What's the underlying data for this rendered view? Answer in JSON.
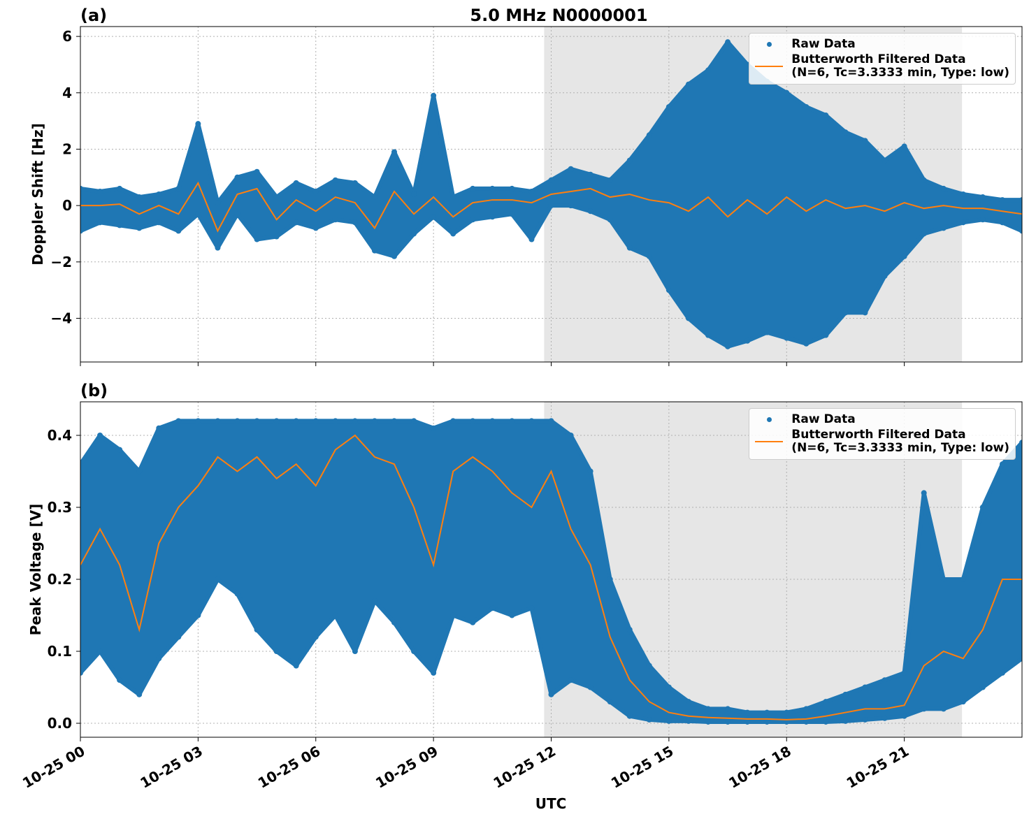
{
  "chart_data": [
    {
      "type": "line",
      "panel_label": "(a)",
      "title": "5.0 MHz N0000001",
      "ylabel": "Doppler Shift [Hz]",
      "x": [
        0,
        0.5,
        1,
        1.5,
        2,
        2.5,
        3,
        3.5,
        4,
        4.5,
        5,
        5.5,
        6,
        6.5,
        7,
        7.5,
        8,
        8.5,
        9,
        9.5,
        10,
        10.5,
        11,
        11.5,
        12,
        12.5,
        13,
        13.5,
        14,
        14.5,
        15,
        15.5,
        16,
        16.5,
        17,
        17.5,
        18,
        18.5,
        19,
        19.5,
        20,
        20.5,
        21,
        21.5,
        22,
        22.5,
        23,
        23.5,
        24
      ],
      "xlim": [
        0,
        24
      ],
      "xticks": [
        0,
        3,
        6,
        9,
        12,
        15,
        18,
        21
      ],
      "ylim": [
        -5.55,
        6.35
      ],
      "yticks": [
        {
          "value": -4,
          "label": "−4"
        },
        {
          "value": -2,
          "label": "−2"
        },
        0,
        2,
        4,
        6
      ],
      "grid": true,
      "shaded_span": [
        11.82,
        22.47
      ],
      "legend": "upper right",
      "series": [
        {
          "name": "Raw Data",
          "kind": "scatter",
          "color": "#1f77b4",
          "max": [
            0.6,
            0.5,
            0.6,
            0.3,
            0.4,
            0.6,
            2.9,
            0.1,
            1.0,
            1.2,
            0.3,
            0.8,
            0.5,
            0.9,
            0.8,
            0.3,
            1.9,
            0.4,
            3.9,
            0.3,
            0.6,
            0.6,
            0.6,
            0.5,
            0.9,
            1.3,
            1.1,
            0.9,
            1.6,
            2.5,
            3.5,
            4.3,
            4.8,
            5.8,
            5.0,
            4.4,
            4.0,
            3.5,
            3.2,
            2.6,
            2.3,
            1.6,
            2.1,
            0.9,
            0.6,
            0.4,
            0.3,
            0.2,
            0.2
          ],
          "min": [
            -0.9,
            -0.6,
            -0.7,
            -0.8,
            -0.6,
            -0.9,
            -0.3,
            -1.5,
            -0.3,
            -1.2,
            -1.1,
            -0.6,
            -0.8,
            -0.5,
            -0.6,
            -1.6,
            -1.8,
            -1.0,
            -0.4,
            -1.0,
            -0.5,
            -0.4,
            -0.3,
            -1.2,
            0.0,
            0.0,
            -0.2,
            -0.5,
            -1.5,
            -1.8,
            -3.0,
            -4.0,
            -4.6,
            -5.0,
            -4.8,
            -4.5,
            -4.7,
            -4.9,
            -4.6,
            -3.8,
            -3.8,
            -2.5,
            -1.8,
            -1.0,
            -0.8,
            -0.6,
            -0.5,
            -0.6,
            -0.9
          ]
        },
        {
          "name": "Butterworth Filtered Data\n(N=6, Tc=3.3333 min, Type: low)",
          "kind": "line",
          "color": "#ff7f0e",
          "values": [
            0.0,
            0.0,
            0.05,
            -0.3,
            0.0,
            -0.3,
            0.8,
            -0.9,
            0.4,
            0.6,
            -0.5,
            0.2,
            -0.2,
            0.3,
            0.1,
            -0.8,
            0.5,
            -0.3,
            0.3,
            -0.4,
            0.1,
            0.2,
            0.2,
            0.1,
            0.4,
            0.5,
            0.6,
            0.3,
            0.4,
            0.2,
            0.1,
            -0.2,
            0.3,
            -0.4,
            0.2,
            -0.3,
            0.3,
            -0.2,
            0.2,
            -0.1,
            0.0,
            -0.2,
            0.1,
            -0.1,
            0.0,
            -0.1,
            -0.1,
            -0.2,
            -0.3
          ]
        }
      ]
    },
    {
      "type": "line",
      "panel_label": "(b)",
      "ylabel": "Peak Voltage [V]",
      "xlabel": "UTC",
      "x": [
        0,
        0.5,
        1,
        1.5,
        2,
        2.5,
        3,
        3.5,
        4,
        4.5,
        5,
        5.5,
        6,
        6.5,
        7,
        7.5,
        8,
        8.5,
        9,
        9.5,
        10,
        10.5,
        11,
        11.5,
        12,
        12.5,
        13,
        13.5,
        14,
        14.5,
        15,
        15.5,
        16,
        16.5,
        17,
        17.5,
        18,
        18.5,
        19,
        19.5,
        20,
        20.5,
        21,
        21.5,
        22,
        22.5,
        23,
        23.5,
        24
      ],
      "xlim": [
        0,
        24
      ],
      "xticks": [
        {
          "value": 0,
          "label": "10-25 00"
        },
        {
          "value": 3,
          "label": "10-25 03"
        },
        {
          "value": 6,
          "label": "10-25 06"
        },
        {
          "value": 9,
          "label": "10-25 09"
        },
        {
          "value": 12,
          "label": "10-25 12"
        },
        {
          "value": 15,
          "label": "10-25 15"
        },
        {
          "value": 18,
          "label": "10-25 18"
        },
        {
          "value": 21,
          "label": "10-25 21"
        }
      ],
      "ylim": [
        -0.0194,
        0.4466
      ],
      "yticks": [
        {
          "value": 0,
          "label": "0.0"
        },
        0.1,
        0.2,
        0.3,
        0.4
      ],
      "grid": true,
      "shaded_span": [
        11.82,
        22.47
      ],
      "legend": "upper right",
      "series": [
        {
          "name": "Raw Data",
          "kind": "scatter",
          "color": "#1f77b4",
          "max": [
            0.36,
            0.4,
            0.38,
            0.35,
            0.41,
            0.42,
            0.42,
            0.42,
            0.42,
            0.42,
            0.42,
            0.42,
            0.42,
            0.42,
            0.42,
            0.42,
            0.42,
            0.42,
            0.41,
            0.42,
            0.42,
            0.42,
            0.42,
            0.42,
            0.42,
            0.4,
            0.35,
            0.2,
            0.13,
            0.08,
            0.05,
            0.03,
            0.02,
            0.02,
            0.015,
            0.015,
            0.015,
            0.02,
            0.03,
            0.04,
            0.05,
            0.06,
            0.07,
            0.32,
            0.2,
            0.2,
            0.3,
            0.36,
            0.39
          ],
          "min": [
            0.07,
            0.1,
            0.06,
            0.04,
            0.09,
            0.12,
            0.15,
            0.2,
            0.18,
            0.13,
            0.1,
            0.08,
            0.12,
            0.15,
            0.1,
            0.17,
            0.14,
            0.1,
            0.07,
            0.15,
            0.14,
            0.16,
            0.15,
            0.16,
            0.04,
            0.06,
            0.05,
            0.03,
            0.01,
            0.005,
            0.003,
            0.003,
            0.002,
            0.002,
            0.002,
            0.002,
            0.002,
            0.002,
            0.002,
            0.003,
            0.005,
            0.007,
            0.01,
            0.02,
            0.02,
            0.03,
            0.05,
            0.07,
            0.09
          ]
        },
        {
          "name": "Butterworth Filtered Data\n(N=6, Tc=3.3333 min, Type: low)",
          "kind": "line",
          "color": "#ff7f0e",
          "values": [
            0.22,
            0.27,
            0.22,
            0.13,
            0.25,
            0.3,
            0.33,
            0.37,
            0.35,
            0.37,
            0.34,
            0.36,
            0.33,
            0.38,
            0.4,
            0.37,
            0.36,
            0.3,
            0.22,
            0.35,
            0.37,
            0.35,
            0.32,
            0.3,
            0.35,
            0.27,
            0.22,
            0.12,
            0.06,
            0.03,
            0.015,
            0.01,
            0.008,
            0.007,
            0.006,
            0.006,
            0.005,
            0.006,
            0.01,
            0.015,
            0.02,
            0.02,
            0.025,
            0.08,
            0.1,
            0.09,
            0.13,
            0.2,
            0.2
          ]
        }
      ]
    }
  ]
}
